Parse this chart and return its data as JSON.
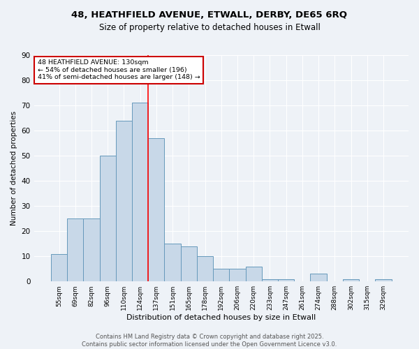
{
  "title_line1": "48, HEATHFIELD AVENUE, ETWALL, DERBY, DE65 6RQ",
  "title_line2": "Size of property relative to detached houses in Etwall",
  "xlabel": "Distribution of detached houses by size in Etwall",
  "ylabel": "Number of detached properties",
  "categories": [
    "55sqm",
    "69sqm",
    "82sqm",
    "96sqm",
    "110sqm",
    "124sqm",
    "137sqm",
    "151sqm",
    "165sqm",
    "178sqm",
    "192sqm",
    "206sqm",
    "220sqm",
    "233sqm",
    "247sqm",
    "261sqm",
    "274sqm",
    "288sqm",
    "302sqm",
    "315sqm",
    "329sqm"
  ],
  "values": [
    11,
    25,
    25,
    50,
    64,
    71,
    57,
    15,
    14,
    10,
    5,
    5,
    6,
    1,
    1,
    0,
    3,
    0,
    1,
    0,
    1
  ],
  "bar_color": "#c8d8e8",
  "bar_edge_color": "#6699bb",
  "red_line_x": 5.5,
  "annotation_text_line1": "48 HEATHFIELD AVENUE: 130sqm",
  "annotation_text_line2": "← 54% of detached houses are smaller (196)",
  "annotation_text_line3": "41% of semi-detached houses are larger (148) →",
  "annotation_box_color": "#ffffff",
  "annotation_box_edge": "#cc0000",
  "footer": "Contains HM Land Registry data © Crown copyright and database right 2025.\nContains public sector information licensed under the Open Government Licence v3.0.",
  "background_color": "#eef2f7",
  "ylim": [
    0,
    90
  ],
  "yticks": [
    0,
    10,
    20,
    30,
    40,
    50,
    60,
    70,
    80,
    90
  ]
}
